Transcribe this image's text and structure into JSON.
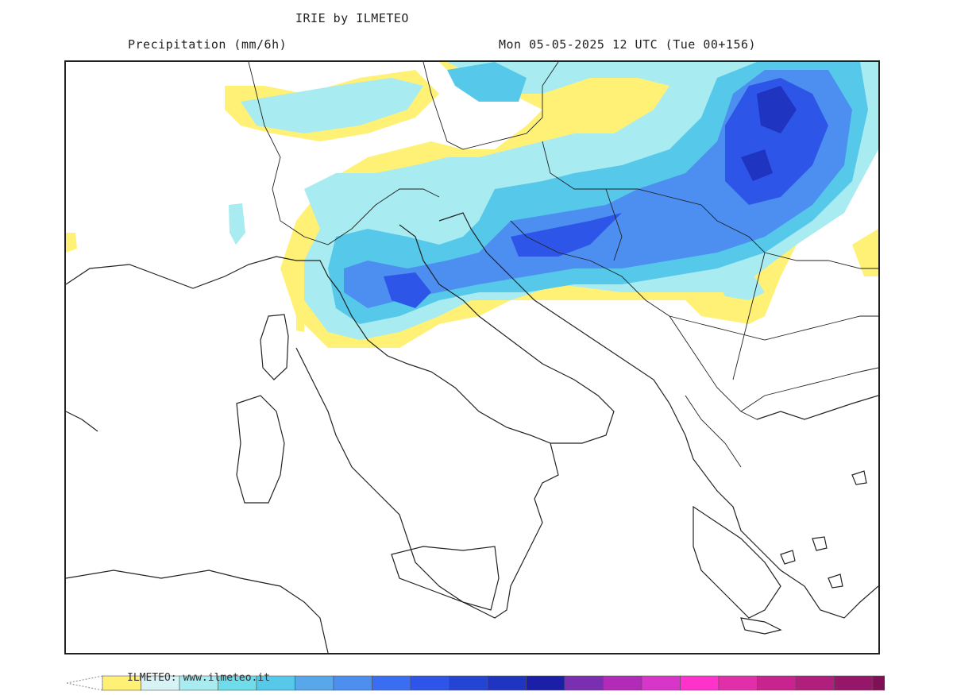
{
  "header": {
    "title": "IRIE by ILMETEO",
    "variable": "Precipitation (mm/6h)",
    "run": "Mon 05-05-2025 12 UTC (Tue 00+156)"
  },
  "footer": {
    "watermark": "ILMETEO: www.ilmeteo.it"
  },
  "legend": {
    "colors": [
      "#fff176",
      "#d8f3f6",
      "#a8ebf0",
      "#6fdcea",
      "#56c8ea",
      "#57a7ea",
      "#4d8ff0",
      "#3a6ef2",
      "#2d55e8",
      "#2444d4",
      "#1f34c0",
      "#1b1ea6",
      "#7a2fb0",
      "#b12bb8",
      "#d836c8",
      "#ff33cc",
      "#e02fa8",
      "#c8248f",
      "#b01f7c",
      "#96166a",
      "#800f55"
    ]
  },
  "map_features": {
    "precip_colors": {
      "light": "#fff176",
      "cyan_light": "#a8ebf0",
      "cyan": "#6fdcea",
      "sky": "#56c8ea",
      "blue": "#4d8ff0",
      "blue_dark": "#2d55e8",
      "navy": "#1f34c0"
    },
    "coastline_color": "#222222"
  }
}
